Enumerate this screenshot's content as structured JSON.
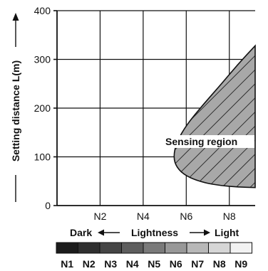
{
  "chart_data": {
    "type": "area",
    "ylabel": "Setting distance L(m)",
    "xlabel": "Lightness",
    "x_left_label": "Dark",
    "x_right_label": "Light",
    "ylim": [
      0,
      400
    ],
    "yticks": [
      0,
      100,
      200,
      300,
      400
    ],
    "xlim": [
      0,
      9.2
    ],
    "xticks": [
      {
        "value": 2,
        "label": "N2"
      },
      {
        "value": 4,
        "label": "N4"
      },
      {
        "value": 6,
        "label": "N6"
      },
      {
        "value": 8,
        "label": "N8"
      }
    ],
    "grid": true,
    "region_label": "Sensing region",
    "region_boundary": [
      {
        "x": 9.2,
        "y": 328
      },
      {
        "x": 8.4,
        "y": 290
      },
      {
        "x": 7.6,
        "y": 248
      },
      {
        "x": 6.8,
        "y": 208
      },
      {
        "x": 6.0,
        "y": 165
      },
      {
        "x": 5.55,
        "y": 130
      },
      {
        "x": 5.4,
        "y": 100
      },
      {
        "x": 5.55,
        "y": 78
      },
      {
        "x": 6.0,
        "y": 60
      },
      {
        "x": 6.8,
        "y": 47
      },
      {
        "x": 7.6,
        "y": 41
      },
      {
        "x": 8.4,
        "y": 38
      },
      {
        "x": 9.2,
        "y": 37
      }
    ],
    "scale": {
      "labels": [
        "N1",
        "N2",
        "N3",
        "N4",
        "N5",
        "N6",
        "N7",
        "N8",
        "N9"
      ],
      "colors": [
        "#1c1c1c",
        "#2f2f2f",
        "#454545",
        "#5e5e5e",
        "#7a7a7a",
        "#989898",
        "#b8b8b8",
        "#d6d6d6",
        "#f2f2f2"
      ]
    },
    "region_fill": "#a8a8a8"
  }
}
